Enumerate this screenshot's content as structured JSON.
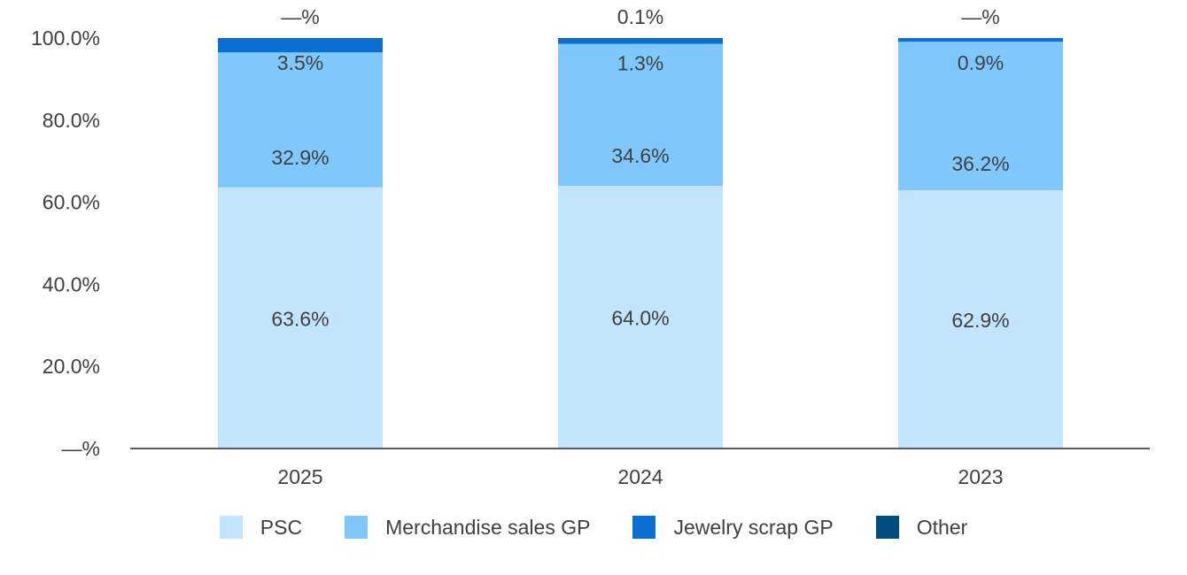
{
  "chart_data": {
    "type": "bar",
    "stacked": true,
    "title": "",
    "xlabel": "",
    "ylabel": "",
    "ylim": [
      0,
      100
    ],
    "y_ticks": [
      "—%",
      "20.0%",
      "40.0%",
      "60.0%",
      "80.0%",
      "100.0%"
    ],
    "y_tick_values": [
      0,
      20,
      40,
      60,
      80,
      100
    ],
    "categories": [
      "2025",
      "2024",
      "2023"
    ],
    "series": [
      {
        "name": "PSC",
        "color": "#c2e4fc",
        "values": [
          63.6,
          64.0,
          62.9
        ],
        "labels": [
          "63.6%",
          "64.0%",
          "62.9%"
        ]
      },
      {
        "name": "Merchandise sales GP",
        "color": "#80c8fc",
        "values": [
          32.9,
          34.6,
          36.2
        ],
        "labels": [
          "32.9%",
          "34.6%",
          "36.2%"
        ]
      },
      {
        "name": "Jewelry scrap GP",
        "color": "#0a6fd0",
        "values": [
          3.5,
          1.3,
          0.9
        ],
        "labels": [
          "3.5%",
          "1.3%",
          "0.9%"
        ]
      },
      {
        "name": "Other",
        "color": "#004b80",
        "values": [
          0,
          0.1,
          0
        ],
        "labels": [
          "—%",
          "0.1%",
          "—%"
        ]
      }
    ],
    "legend_position": "bottom-center",
    "grid": false
  }
}
